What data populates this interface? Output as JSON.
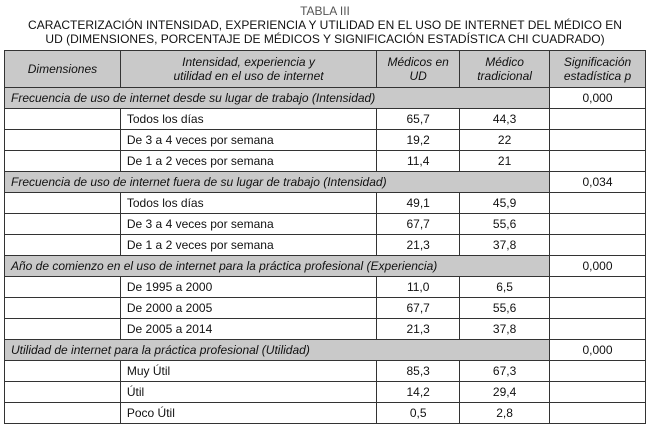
{
  "title": "TABLA III",
  "caption_line1": "CARACTERIZACIÓN INTENSIDAD, EXPERIENCIA Y UTILIDAD EN EL USO DE INTERNET DEL MÉDICO EN",
  "caption_line2": "UD (DIMENSIONES, PORCENTAJE DE MÉDICOS Y SIGNIFICACIÓN ESTADÍSTICA CHI CUADRADO)",
  "headers": {
    "c1": "Dimensiones",
    "c2a": "Intensidad, experiencia y",
    "c2b": "utilidad en el uso de internet",
    "c3a": "Médicos en",
    "c3b": "UD",
    "c4a": "Médico",
    "c4b": "tradicional",
    "c5a": "Significación",
    "c5b": "estadística p"
  },
  "groups": [
    {
      "label": "Frecuencia de uso de internet desde su lugar de trabajo (Intensidad)",
      "p": "0,000",
      "rows": [
        [
          "Todos los días",
          "65,7",
          "44,3"
        ],
        [
          "De 3 a 4 veces por semana",
          "19,2",
          "22"
        ],
        [
          "De 1 a 2 veces por semana",
          "11,4",
          "21"
        ]
      ]
    },
    {
      "label": "Frecuencia de uso de internet fuera de su lugar de trabajo (Intensidad)",
      "p": "0,034",
      "rows": [
        [
          "Todos los días",
          "49,1",
          "45,9"
        ],
        [
          "De 3 a 4 veces por semana",
          "67,7",
          "55,6"
        ],
        [
          "De 1 a 2 veces por semana",
          "21,3",
          "37,8"
        ]
      ]
    },
    {
      "label": "Año de comienzo en el uso de internet para la práctica profesional (Experiencia)",
      "p": "0,000",
      "rows": [
        [
          "De 1995 a 2000",
          "11,0",
          "6,5"
        ],
        [
          "De 2000 a 2005",
          "67,7",
          "55,6"
        ],
        [
          "De 2005 a 2014",
          "21,3",
          "37,8"
        ]
      ]
    },
    {
      "label": "Utilidad de internet para la práctica profesional (Utilidad)",
      "p": "0,000",
      "rows": [
        [
          "Muy Útil",
          "85,3",
          "67,3"
        ],
        [
          "Útil",
          "14,2",
          "29,4"
        ],
        [
          "Poco Útil",
          "0,5",
          "2,8"
        ]
      ]
    }
  ]
}
